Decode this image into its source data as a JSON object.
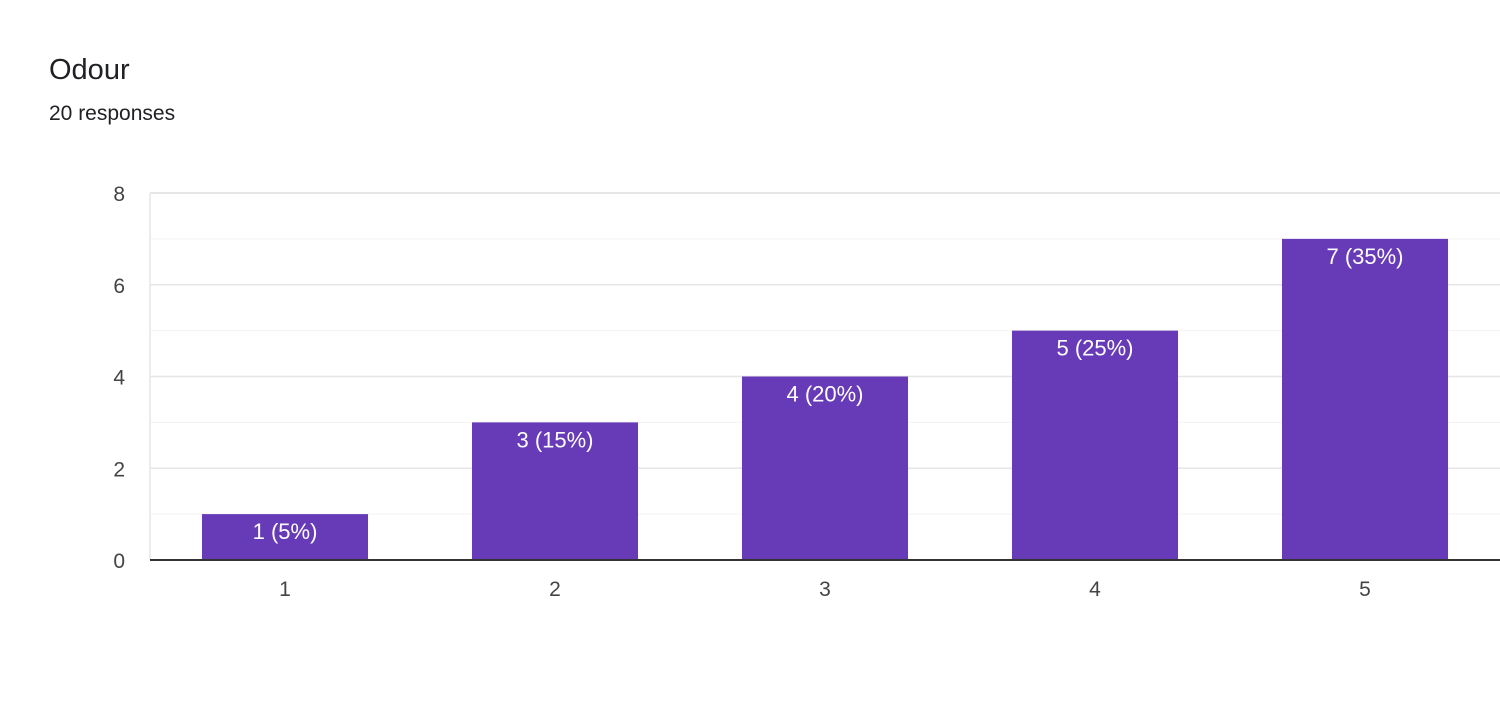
{
  "question": {
    "title": "Odour",
    "responses_label": "20 responses"
  },
  "colors": {
    "bar": "#673ab7",
    "grid": "#e6e6e6",
    "minor_grid": "#f3f3f3",
    "axis": "#333333"
  },
  "chart_data": {
    "type": "bar",
    "categories": [
      "1",
      "2",
      "3",
      "4",
      "5"
    ],
    "values": [
      1,
      3,
      4,
      5,
      7
    ],
    "data_labels": [
      "1 (5%)",
      "3 (15%)",
      "4 (20%)",
      "5 (25%)",
      "7 (35%)"
    ],
    "title": "Odour",
    "subtitle": "20 responses",
    "xlabel": "",
    "ylabel": "",
    "ylim": [
      0,
      8
    ],
    "yticks": [
      0,
      2,
      4,
      6,
      8
    ],
    "grid": true,
    "legend": "none"
  }
}
